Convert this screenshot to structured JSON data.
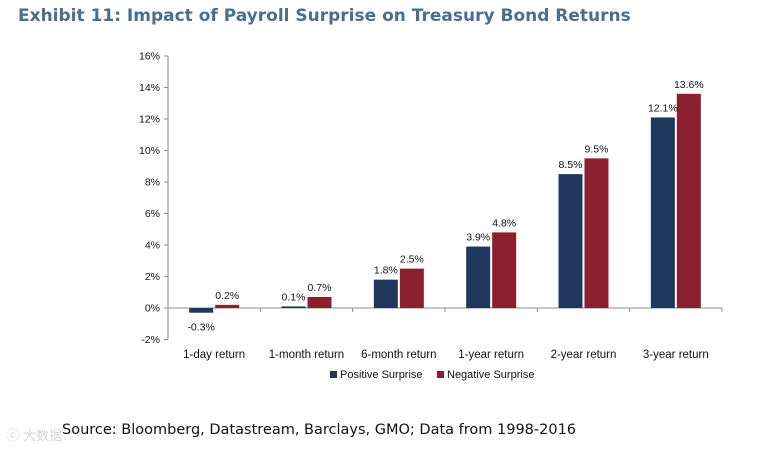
{
  "title": "Exhibit 11: Impact of Payroll Surprise on Treasury Bond Returns",
  "source": "Source:  Bloomberg, Datastream, Barclays, GMO; Data from 1998-2016",
  "watermark": "ⓒ 大数据",
  "colors": {
    "positive": "#1f375c",
    "negative": "#8c1f2e",
    "title": "#4a6f8e"
  },
  "chart_data": {
    "type": "bar",
    "title": "Exhibit 11: Impact of Payroll Surprise on Treasury Bond Returns",
    "categories": [
      "1-day return",
      "1-month return",
      "6-month return",
      "1-year return",
      "2-year return",
      "3-year return"
    ],
    "series": [
      {
        "name": "Positive Surprise",
        "values": [
          -0.3,
          0.1,
          1.8,
          3.9,
          8.5,
          12.1
        ],
        "labels": [
          "-0.3%",
          "0.1%",
          "1.8%",
          "3.9%",
          "8.5%",
          "12.1%"
        ]
      },
      {
        "name": "Negative Surprise",
        "values": [
          0.2,
          0.7,
          2.5,
          4.8,
          9.5,
          13.6
        ],
        "labels": [
          "0.2%",
          "0.7%",
          "2.5%",
          "4.8%",
          "9.5%",
          "13.6%"
        ]
      }
    ],
    "ylim": [
      -2,
      16
    ],
    "yticks": [
      "-2%",
      "0%",
      "2%",
      "4%",
      "6%",
      "8%",
      "10%",
      "12%",
      "14%",
      "16%"
    ],
    "ytick_values": [
      -2,
      0,
      2,
      4,
      6,
      8,
      10,
      12,
      14,
      16
    ],
    "grid": false,
    "legend_position": "bottom"
  }
}
